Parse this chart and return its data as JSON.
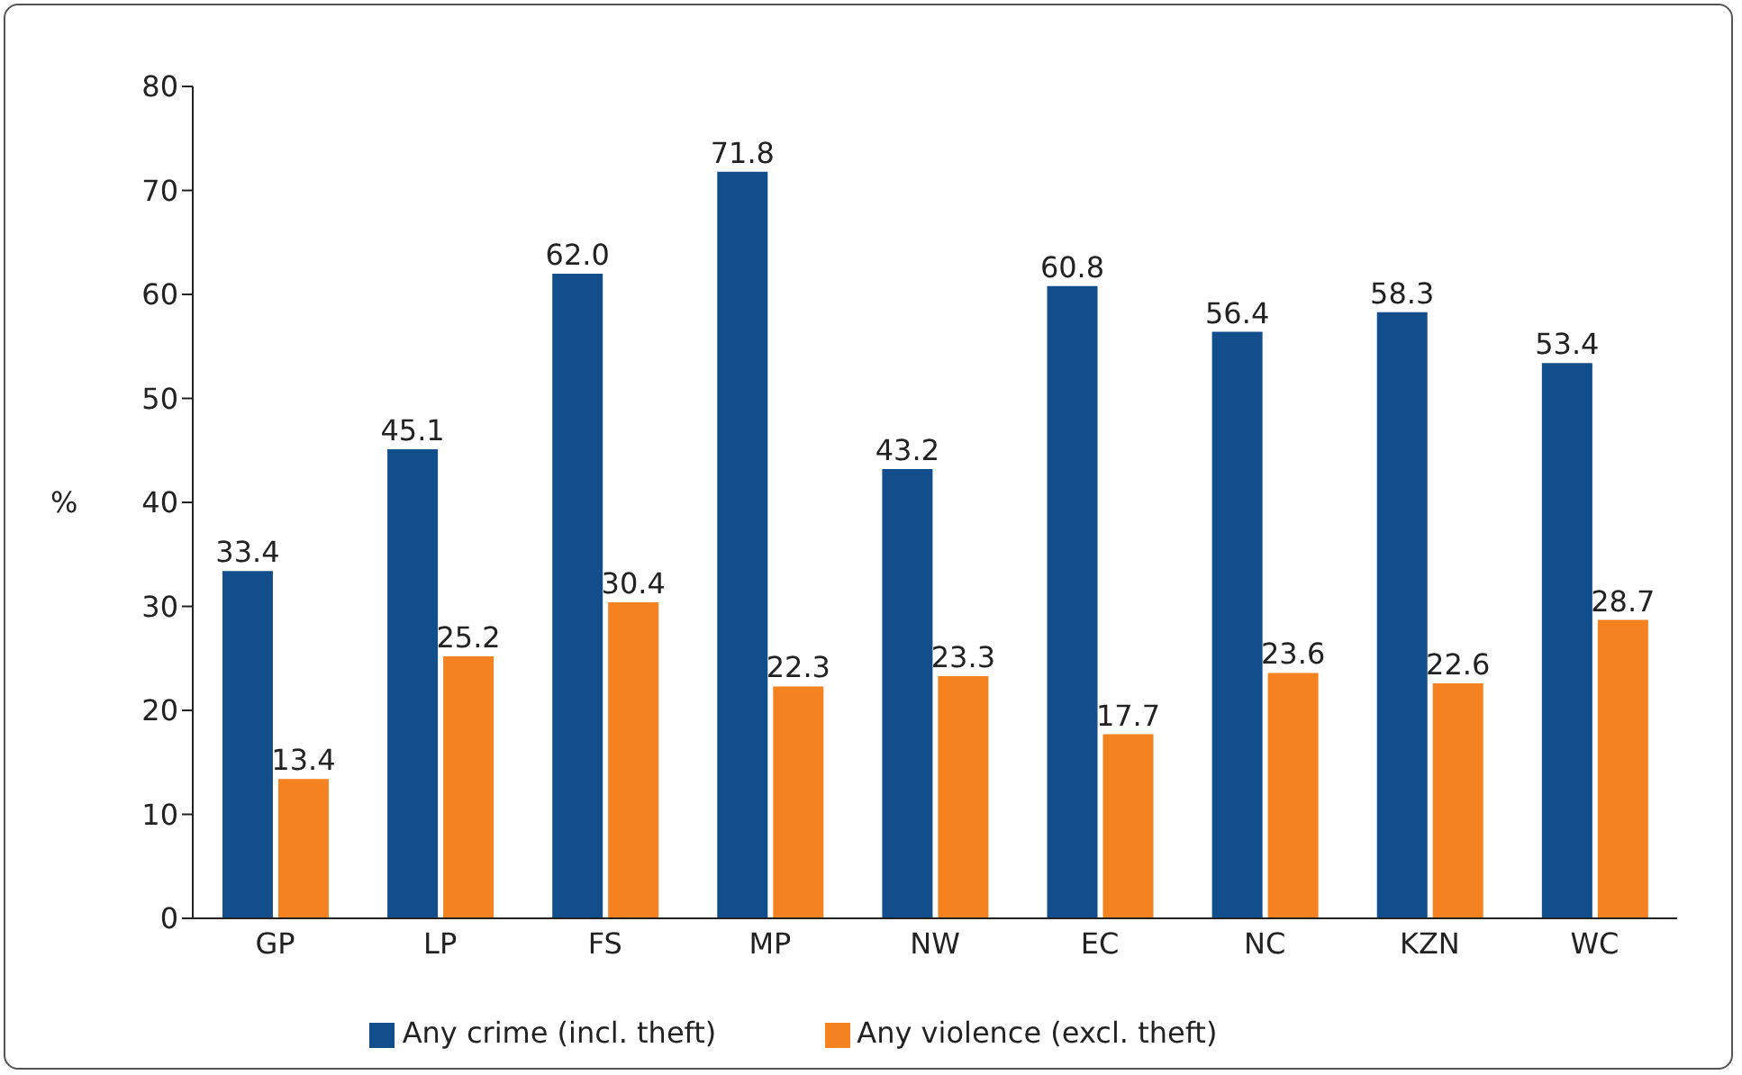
{
  "chart_data": {
    "type": "bar",
    "ylabel": "%",
    "categories": [
      "GP",
      "LP",
      "FS",
      "MP",
      "NW",
      "EC",
      "NC",
      "KZN",
      "WC"
    ],
    "series": [
      {
        "name": "Any crime (incl. theft)",
        "color": "#124e8c",
        "values": [
          33.4,
          45.1,
          62.0,
          71.8,
          43.2,
          60.8,
          56.4,
          58.3,
          53.4
        ],
        "value_labels": [
          "33.4",
          "45.1",
          "62.0",
          "71.8",
          "43.2",
          "60.8",
          "56.4",
          "58.3",
          "53.4"
        ]
      },
      {
        "name": "Any violence (excl. theft)",
        "color": "#f58220",
        "values": [
          13.4,
          25.2,
          30.4,
          22.3,
          23.3,
          17.7,
          23.6,
          22.6,
          28.7
        ],
        "value_labels": [
          "13.4",
          "25.2",
          "30.4",
          "22.3",
          "23.3",
          "17.7",
          "23.6",
          "22.6",
          "28.7"
        ]
      }
    ],
    "ylim": [
      0,
      80
    ],
    "yticks": [
      0,
      10,
      20,
      30,
      40,
      50,
      60,
      70,
      80
    ],
    "grid": false,
    "legend": "bottom"
  }
}
